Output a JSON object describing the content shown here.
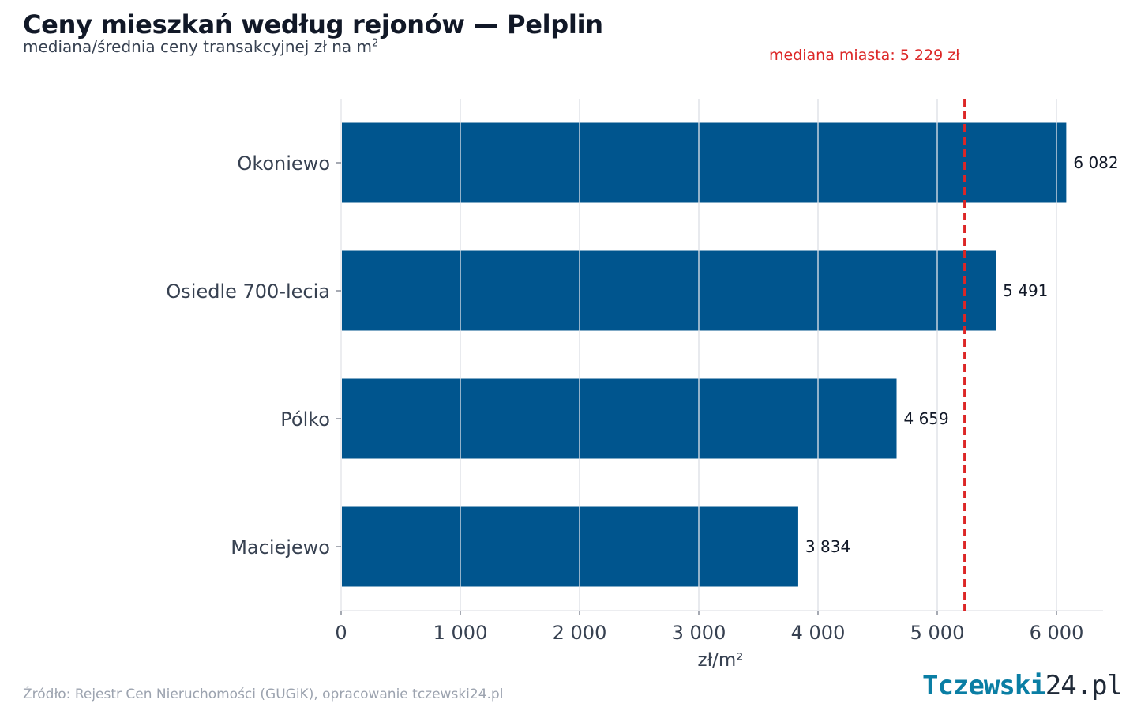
{
  "header": {
    "title": "Ceny mieszkań według rejonów — Pelplin",
    "subtitle": "mediana/średnia ceny transakcyjnej zł na m",
    "subtitle_sup": "2"
  },
  "footer": {
    "source": "Źródło: Rejestr Cen Nieruchomości (GUGiK), opracowanie tczewski24.pl",
    "logo_part1": "Tczewski",
    "logo_part2": "24.pl"
  },
  "chart_data": {
    "type": "bar",
    "orientation": "horizontal",
    "categories": [
      "Okoniewo",
      "Osiedle 700-lecia",
      "Pólko",
      "Maciejewo"
    ],
    "values": [
      6082,
      5491,
      4659,
      3834
    ],
    "value_labels": [
      "6 082",
      "5 491",
      "4 659",
      "3 834"
    ],
    "xlabel": "zł/m²",
    "xlim": [
      0,
      6400
    ],
    "xticks": [
      0,
      1000,
      2000,
      3000,
      4000,
      5000,
      6000
    ],
    "xtick_labels": [
      "0",
      "1 000",
      "2 000",
      "3 000",
      "4 000",
      "5 000",
      "6 000"
    ],
    "grid": "vertical",
    "reference_line": {
      "value": 5229,
      "label": "mediana miasta: 5 229 zł",
      "color": "#dc2626",
      "style": "dashed"
    },
    "bar_color": "#00558e"
  }
}
